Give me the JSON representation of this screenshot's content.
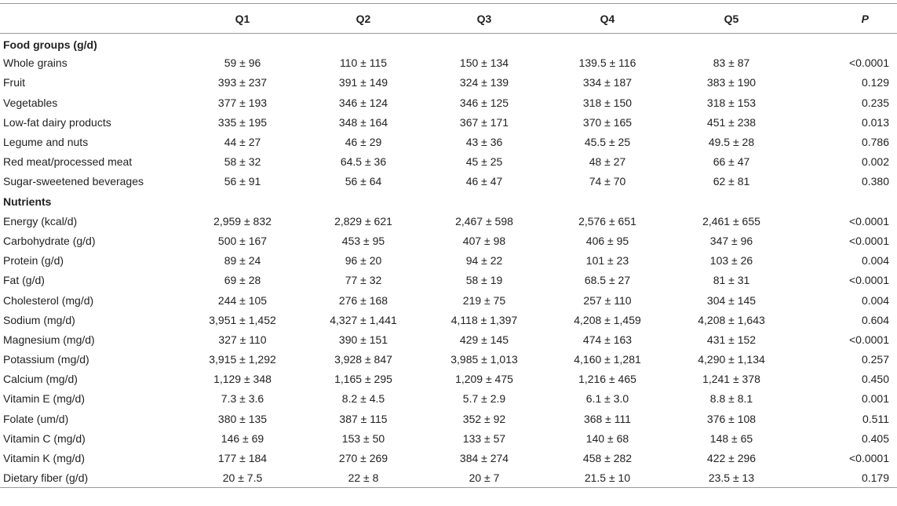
{
  "table": {
    "headers": [
      "",
      "Q1",
      "Q2",
      "Q3",
      "Q4",
      "Q5",
      "P"
    ],
    "sections": [
      {
        "title": "Food groups (g/d)",
        "rows": [
          {
            "label": "Whole grains",
            "values": [
              "59 ± 96",
              "110 ± 115",
              "150 ± 134",
              "139.5 ± 116",
              "83 ± 87"
            ],
            "p": "<0.0001"
          },
          {
            "label": "Fruit",
            "values": [
              "393 ± 237",
              "391 ± 149",
              "324 ± 139",
              "334 ± 187",
              "383 ± 190"
            ],
            "p": "0.129"
          },
          {
            "label": "Vegetables",
            "values": [
              "377 ± 193",
              "346 ± 124",
              "346 ± 125",
              "318 ± 150",
              "318 ± 153"
            ],
            "p": "0.235"
          },
          {
            "label": "Low-fat dairy products",
            "values": [
              "335 ± 195",
              "348 ± 164",
              "367 ± 171",
              "370 ± 165",
              "451 ± 238"
            ],
            "p": "0.013"
          },
          {
            "label": "Legume and nuts",
            "values": [
              "44 ± 27",
              "46 ± 29",
              "43 ± 36",
              "45.5 ± 25",
              "49.5 ± 28"
            ],
            "p": "0.786"
          },
          {
            "label": "Red meat/processed meat",
            "values": [
              "58 ± 32",
              "64.5 ± 36",
              "45 ± 25",
              "48 ± 27",
              "66 ± 47"
            ],
            "p": "0.002"
          },
          {
            "label": "Sugar-sweetened beverages",
            "values": [
              "56 ± 91",
              "56 ± 64",
              "46 ± 47",
              "74 ± 70",
              "62 ± 81"
            ],
            "p": "0.380"
          }
        ]
      },
      {
        "title": "Nutrients",
        "rows": [
          {
            "label": "Energy (kcal/d)",
            "values": [
              "2,959 ± 832",
              "2,829 ± 621",
              "2,467 ± 598",
              "2,576 ± 651",
              "2,461 ± 655"
            ],
            "p": "<0.0001"
          },
          {
            "label": "Carbohydrate (g/d)",
            "values": [
              "500 ± 167",
              "453 ± 95",
              "407 ± 98",
              "406 ± 95",
              "347 ± 96"
            ],
            "p": "<0.0001"
          },
          {
            "label": "Protein (g/d)",
            "values": [
              "89 ± 24",
              "96 ± 20",
              "94 ± 22",
              "101 ± 23",
              "103 ± 26"
            ],
            "p": "0.004"
          },
          {
            "label": "Fat (g/d)",
            "values": [
              "69 ± 28",
              "77 ± 32",
              "58 ± 19",
              "68.5 ± 27",
              "81 ± 31"
            ],
            "p": "<0.0001"
          },
          {
            "label": "Cholesterol (mg/d)",
            "values": [
              "244 ± 105",
              "276 ± 168",
              "219 ± 75",
              "257 ± 110",
              "304 ± 145"
            ],
            "p": "0.004"
          },
          {
            "label": "Sodium (mg/d)",
            "values": [
              "3,951 ± 1,452",
              "4,327 ± 1,441",
              "4,118 ± 1,397",
              "4,208 ± 1,459",
              "4,208 ± 1,643"
            ],
            "p": "0.604"
          },
          {
            "label": "Magnesium (mg/d)",
            "values": [
              "327 ± 110",
              "390 ± 151",
              "429 ± 145",
              "474 ± 163",
              "431 ± 152"
            ],
            "p": "<0.0001"
          },
          {
            "label": "Potassium (mg/d)",
            "values": [
              "3,915 ± 1,292",
              "3,928 ± 847",
              "3,985 ± 1,013",
              "4,160 ± 1,281",
              "4,290 ± 1,134"
            ],
            "p": "0.257"
          },
          {
            "label": "Calcium (mg/d)",
            "values": [
              "1,129 ± 348",
              "1,165 ± 295",
              "1,209 ± 475",
              "1,216 ± 465",
              "1,241 ± 378"
            ],
            "p": "0.450"
          },
          {
            "label": "Vitamin E (mg/d)",
            "values": [
              "7.3 ± 3.6",
              "8.2 ± 4.5",
              "5.7 ± 2.9",
              "6.1 ± 3.0",
              "8.8 ± 8.1"
            ],
            "p": "0.001"
          },
          {
            "label": "Folate (um/d)",
            "values": [
              "380 ± 135",
              "387 ± 115",
              "352 ± 92",
              "368 ± 111",
              "376 ± 108"
            ],
            "p": "0.511"
          },
          {
            "label": "Vitamin C (mg/d)",
            "values": [
              "146 ± 69",
              "153 ± 50",
              "133 ± 57",
              "140 ± 68",
              "148 ± 65"
            ],
            "p": "0.405"
          },
          {
            "label": "Vitamin K (mg/d)",
            "values": [
              "177 ± 184",
              "270 ± 269",
              "384 ± 274",
              "458 ± 282",
              "422 ± 296"
            ],
            "p": "<0.0001"
          },
          {
            "label": "Dietary fiber (g/d)",
            "values": [
              "20 ± 7.5",
              "22 ± 8",
              "20 ± 7",
              "21.5 ± 10",
              "23.5 ± 13"
            ],
            "p": "0.179"
          }
        ]
      }
    ]
  }
}
